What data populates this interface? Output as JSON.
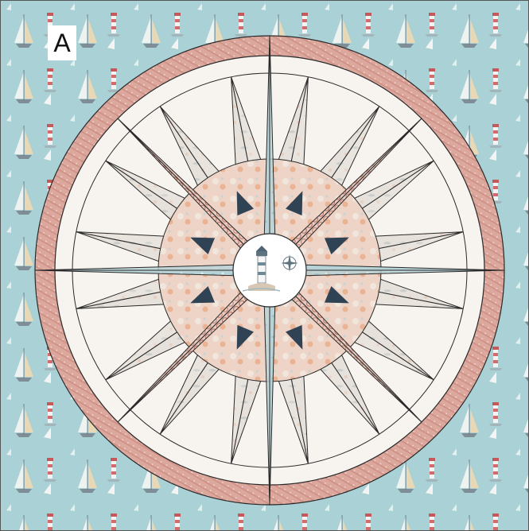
{
  "panel": {
    "label": "A"
  },
  "colors": {
    "background_fabric": "#a9d1d6",
    "background_dark": "#8fbcc4",
    "border_ring": "#dca79c",
    "border_ring_dark": "#c98a7f",
    "cream": "#f7f3ee",
    "main_points": "#b7d3d7",
    "main_points_dark": "#8eb1b8",
    "diagonal_points": "#e9c9bf",
    "diagonal_net": "#b5705f",
    "small_points": "#e6e1da",
    "small_points_dark": "#bfc7c6",
    "flower_ring": "#eed4c6",
    "navy": "#2f4354",
    "line": "#2a2a2a"
  },
  "icons": {
    "center": [
      "lighthouse-icon",
      "compass-rose-icon"
    ],
    "background": [
      "sailboat-icon",
      "lighthouse-icon"
    ]
  }
}
